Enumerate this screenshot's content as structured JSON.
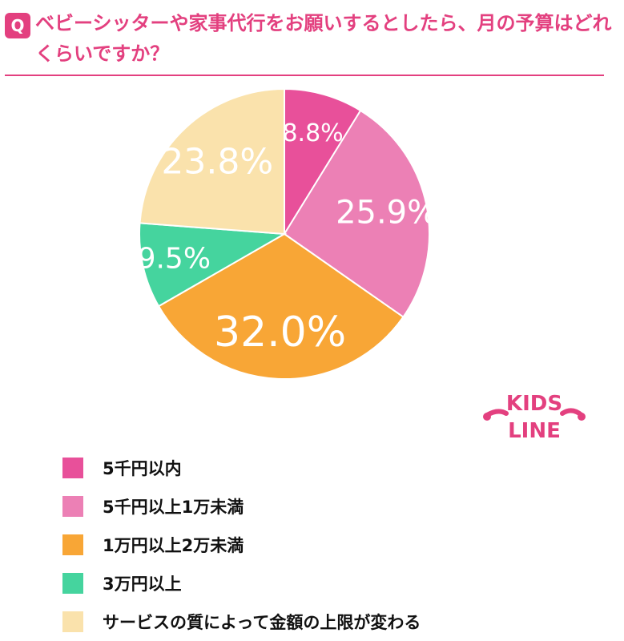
{
  "header": {
    "badge": "Q",
    "question": "ベビーシッターや家事代行をお願いするとしたら、月の予算はどれくらいですか？"
  },
  "logo": {
    "text_line1": "KIDS",
    "text_line2": "LINE",
    "color": "#E3407F"
  },
  "chart_data": {
    "type": "pie",
    "start_angle": "12 o'clock",
    "direction": "clockwise",
    "slices": [
      {
        "label": "5千円以内",
        "value": 8.8,
        "display": "8.8%",
        "color": "#E8509A"
      },
      {
        "label": "5千円以上1万未満",
        "value": 25.9,
        "display": "25.9%",
        "color": "#EC80B5"
      },
      {
        "label": "1万円以上2万未満",
        "value": 32.0,
        "display": "32.0%",
        "color": "#F8A636"
      },
      {
        "label": "3万円以上",
        "value": 9.5,
        "display": "9.5%",
        "color": "#45D49E"
      },
      {
        "label": "サービスの質によって金額の上限が変わる",
        "value": 23.8,
        "display": "23.8%",
        "color": "#FAE2AC"
      }
    ],
    "legend_position": "bottom"
  }
}
